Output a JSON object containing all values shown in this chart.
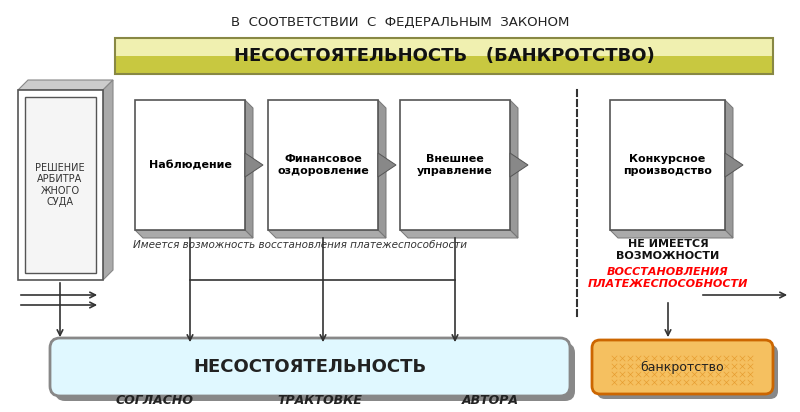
{
  "title_top": "В  СООТВЕТСТВИИ  С  ФЕДЕРАЛЬНЫМ  ЗАКОНОМ",
  "banner_text": "НЕСОСТОЯТЕЛЬНОСТЬ   (БАНКРОТСТВО)",
  "banner_color_top": "#e8e8b0",
  "banner_color_bottom": "#c8c860",
  "left_box_text": "РЕШЕНИЕ\nАРБИТРА\nЖНОГО\nСУДА",
  "stages": [
    "Наблюдение",
    "Финансовое\nоздоровление",
    "Внешнее\nуправление"
  ],
  "stage4_text": "Конкурсное\nпроизводство",
  "italic_note": "Имеется возможность восстановления платежеспособности",
  "right_note_bold": "НЕ ИМЕЕТСЯ\nВОЗМОЖНОСТИ",
  "right_note_red": "ВОССТАНОВЛЕНИЯ\nПЛАТЕЖЕСПОСОБНОСТИ",
  "bottom_pill_text": "НЕСОСТОЯТЕЛЬНОСТЬ",
  "bottom_pill_fill": "#e0f8ff",
  "bottom_pill_border": "#aaaaaa",
  "bankruptcy_pill_text": "банкротство",
  "bankruptcy_pill_fill": "#f5c060",
  "bankruptcy_pill_border": "#cc6600",
  "bottom_labels": [
    "СОГЛАСНО",
    "ТРАКТОВКЕ",
    "АВТОРА"
  ],
  "bg_color": "#ffffff"
}
